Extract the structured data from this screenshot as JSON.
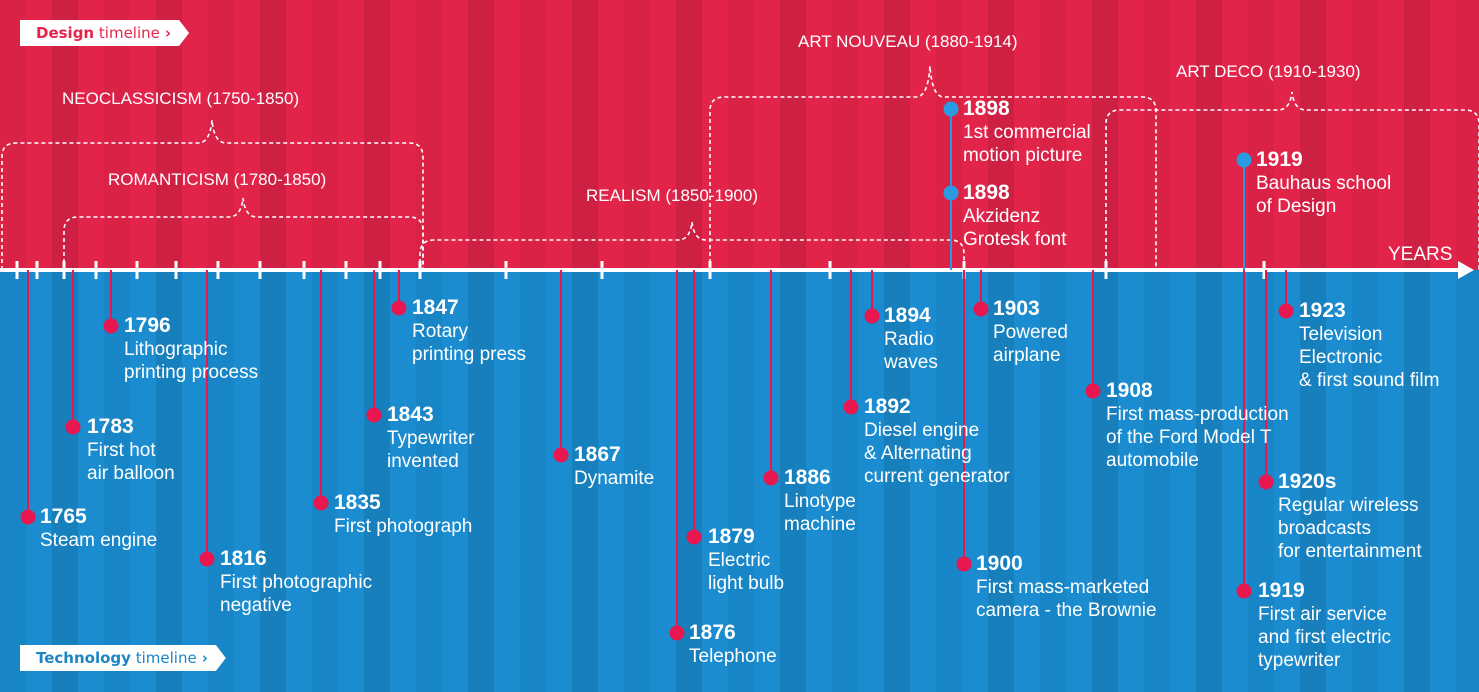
{
  "tags": {
    "design": {
      "bold": "Design",
      "rest": "timeline"
    },
    "technology": {
      "bold": "Technology",
      "rest": "timeline"
    },
    "chevron": "›"
  },
  "axis_label": "YEARS",
  "colors": {
    "design_bg": "#e3244a",
    "tech_bg": "#1a8ccf",
    "dot_pink": "#e8174f",
    "dot_blue": "#2a9be0",
    "line": "#ffffff"
  },
  "eras": [
    {
      "label": "NEOCLASSICISM (1750-1850)"
    },
    {
      "label": "ROMANTICISM (1780-1850)"
    },
    {
      "label": "REALISM (1850-1900)"
    },
    {
      "label": "ART NOUVEAU (1880-1914)"
    },
    {
      "label": "ART DECO (1910-1930)"
    }
  ],
  "design_events": [
    {
      "year": "1898",
      "desc": [
        "1st commercial",
        "motion picture"
      ]
    },
    {
      "year": "1898",
      "desc": [
        "Akzidenz",
        "Grotesk font"
      ]
    },
    {
      "year": "1919",
      "desc": [
        "Bauhaus school",
        "of Design"
      ]
    }
  ],
  "tech_events": [
    {
      "year": "1765",
      "desc": [
        "Steam engine"
      ]
    },
    {
      "year": "1783",
      "desc": [
        "First hot",
        "air balloon"
      ]
    },
    {
      "year": "1796",
      "desc": [
        "Lithographic",
        "printing process"
      ]
    },
    {
      "year": "1816",
      "desc": [
        "First photographic",
        "negative"
      ]
    },
    {
      "year": "1835",
      "desc": [
        "First photograph"
      ]
    },
    {
      "year": "1843",
      "desc": [
        "Typewriter",
        "invented"
      ]
    },
    {
      "year": "1847",
      "desc": [
        "Rotary",
        "printing press"
      ]
    },
    {
      "year": "1867",
      "desc": [
        "Dynamite"
      ]
    },
    {
      "year": "1876",
      "desc": [
        "Telephone"
      ]
    },
    {
      "year": "1879",
      "desc": [
        "Electric",
        "light bulb"
      ]
    },
    {
      "year": "1886",
      "desc": [
        "Linotype",
        "machine"
      ]
    },
    {
      "year": "1892",
      "desc": [
        "Diesel engine",
        "& Alternating",
        "current generator"
      ]
    },
    {
      "year": "1894",
      "desc": [
        "Radio",
        "waves"
      ]
    },
    {
      "year": "1900",
      "desc": [
        "First mass-marketed",
        "camera - the Brownie"
      ]
    },
    {
      "year": "1903",
      "desc": [
        "Powered",
        "airplane"
      ]
    },
    {
      "year": "1908",
      "desc": [
        "First mass-production",
        "of the Ford Model T",
        "automobile"
      ]
    },
    {
      "year": "1919",
      "desc": [
        "First air service",
        "and first electric",
        "typewriter"
      ]
    },
    {
      "year": "1920s",
      "desc": [
        "Regular wireless",
        "broadcasts",
        "for entertainment"
      ]
    },
    {
      "year": "1923",
      "desc": [
        "Television",
        "Electronic",
        "& first sound film"
      ]
    }
  ]
}
